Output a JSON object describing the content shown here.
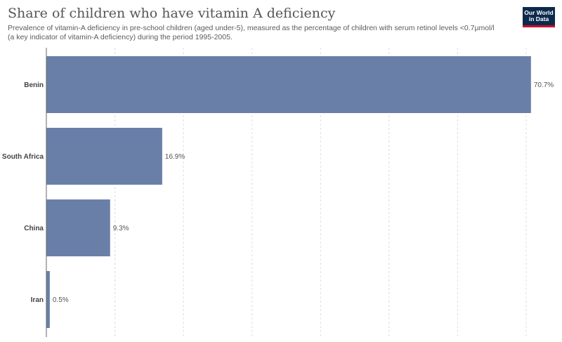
{
  "header": {
    "title": "Share of children who have vitamin A deficiency",
    "subtitle": "Prevalence of vitamin-A deficiency in pre-school children (aged under-5), measured as the percentage of children with serum retinol levels <0.7µmol/l (a key indicator of vitamin-A deficiency) during the period 1995-2005.",
    "logo_line1": "Our World",
    "logo_line2": "in Data"
  },
  "colors": {
    "bar": "#6a7fa8",
    "logo_bg": "#0c2a4c",
    "logo_accent": "#c8102e"
  },
  "chart_data": {
    "type": "bar",
    "orientation": "horizontal",
    "categories": [
      "Benin",
      "South Africa",
      "China",
      "Iran"
    ],
    "values": [
      70.7,
      16.9,
      9.3,
      0.5
    ],
    "value_labels": [
      "70.7%",
      "16.9%",
      "9.3%",
      "0.5%"
    ],
    "title": "Share of children who have vitamin A deficiency",
    "xlabel": "",
    "ylabel": "",
    "xlim": [
      0,
      70
    ],
    "gridlines": [
      0,
      10,
      20,
      30,
      40,
      50,
      60,
      70
    ],
    "grid": true,
    "legend": "none"
  }
}
